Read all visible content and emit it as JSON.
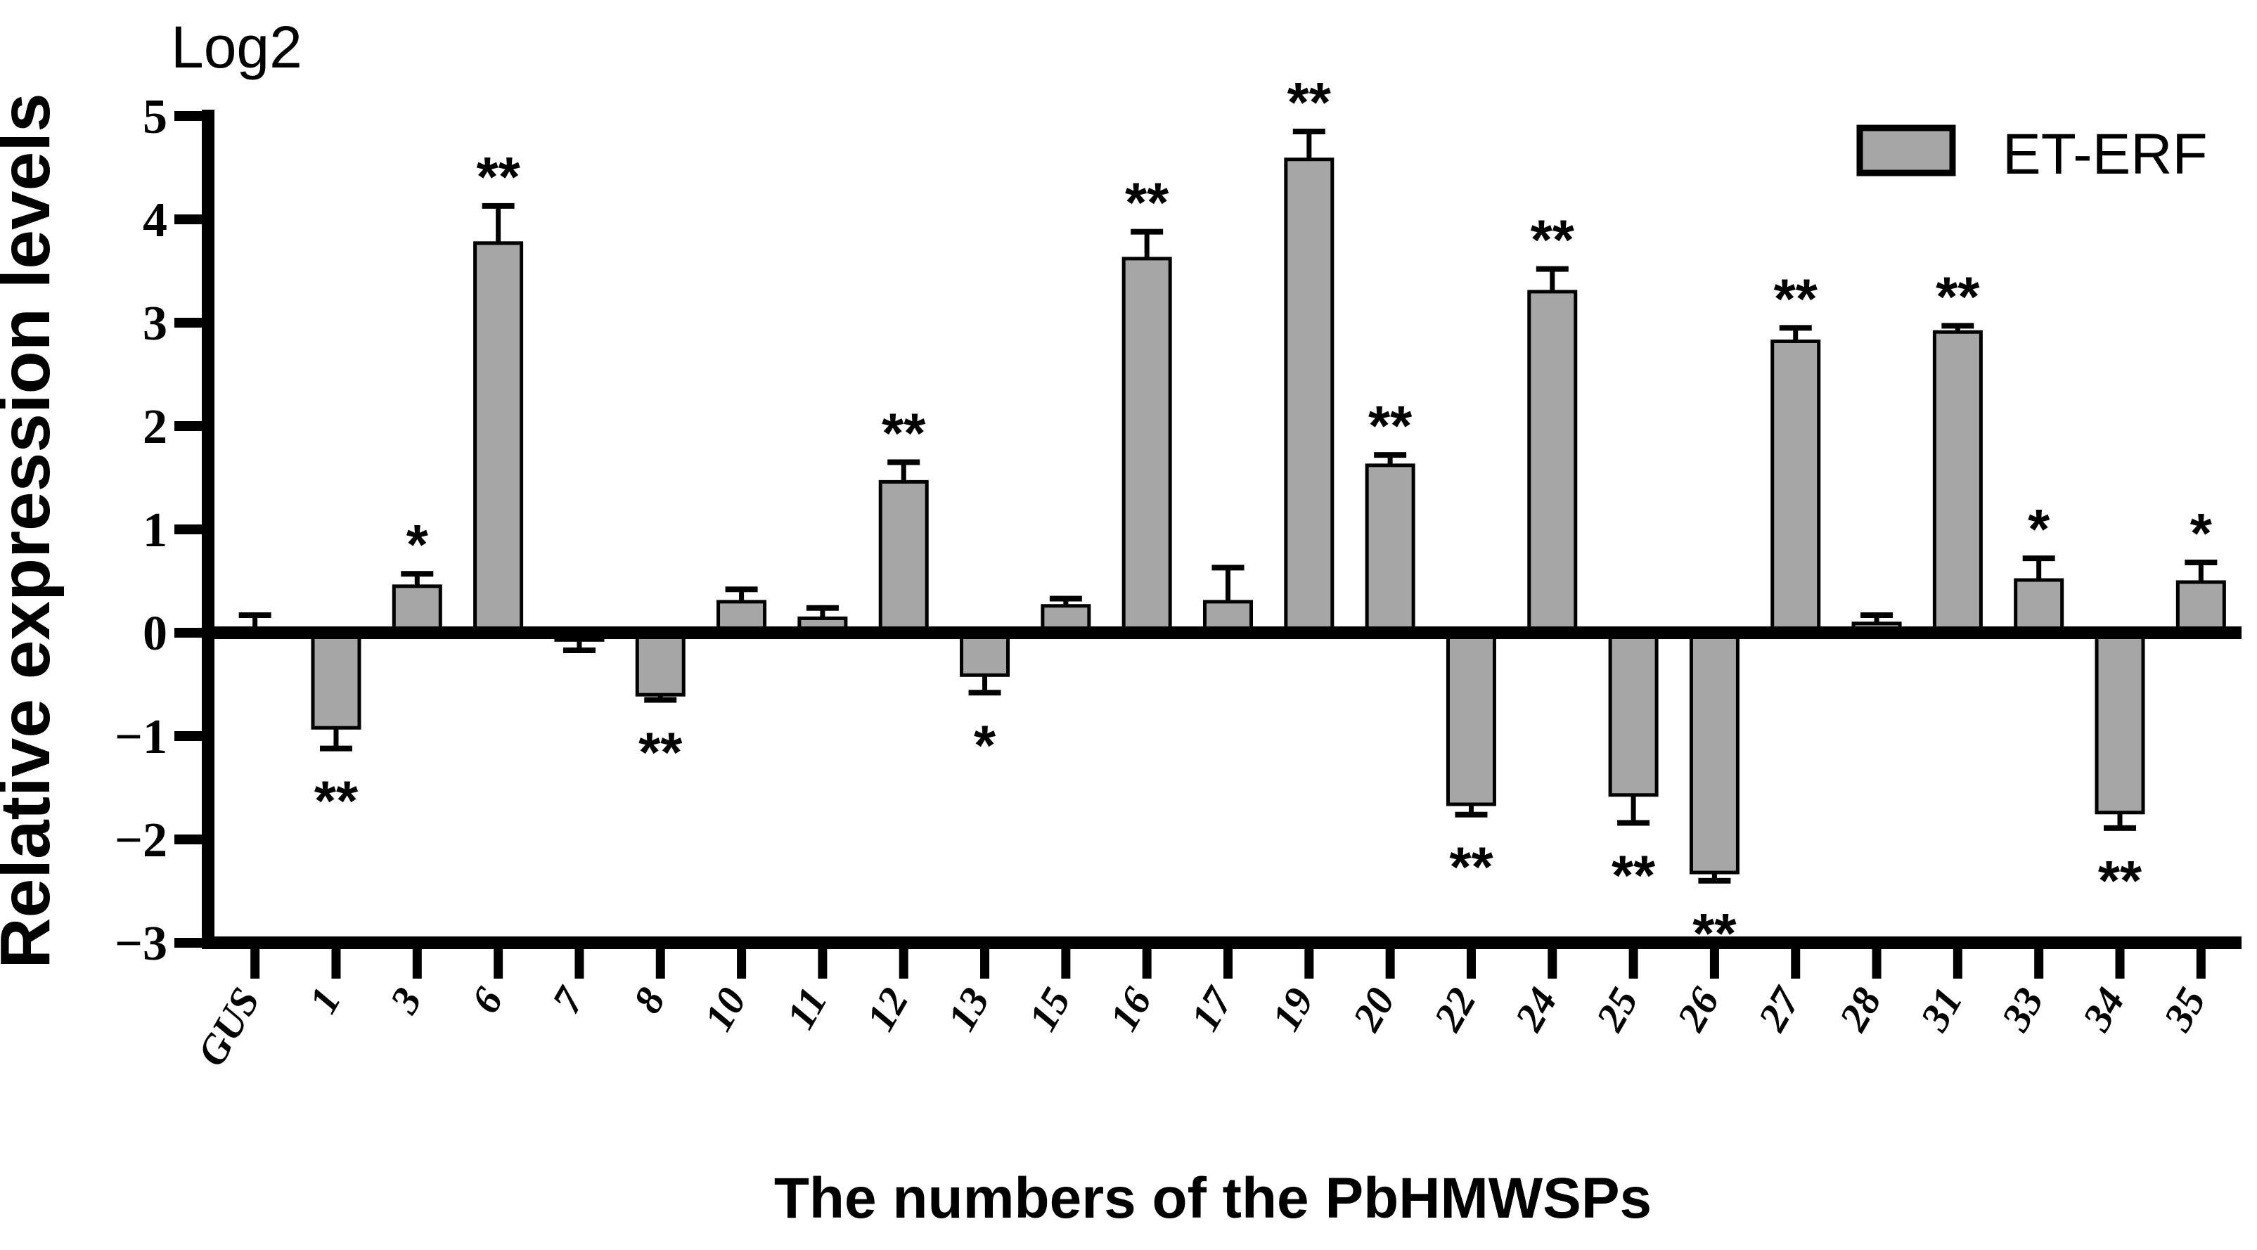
{
  "titles": {
    "log_label": "Log2",
    "y_axis": "Relative expression levels",
    "x_axis": "The numbers of the PbHMWSPs"
  },
  "legend": {
    "label": "ET-ERF",
    "swatch_color": "#a6a6a6"
  },
  "colors": {
    "bar_fill": "#a6a6a6",
    "bar_stroke": "#000000",
    "axis": "#000000",
    "background": "#ffffff",
    "text": "#000000"
  },
  "chart_data": {
    "type": "bar",
    "title": "Log2",
    "xlabel": "The numbers of the PbHMWSPs",
    "ylabel": "Relative expression levels",
    "ylim": [
      -3,
      5
    ],
    "yticks": [
      5,
      4,
      3,
      2,
      1,
      0,
      -1,
      -2,
      -3
    ],
    "grid": false,
    "legend_position": "top-right",
    "baseline": 0,
    "categories": [
      "GUS",
      "1",
      "3",
      "6",
      "7",
      "8",
      "10",
      "11",
      "12",
      "13",
      "15",
      "16",
      "17",
      "19",
      "20",
      "22",
      "24",
      "25",
      "26",
      "27",
      "28",
      "31",
      "33",
      "34",
      "35"
    ],
    "series": [
      {
        "name": "ET-ERF",
        "values": [
          0.02,
          -0.92,
          0.45,
          3.77,
          -0.07,
          -0.6,
          0.3,
          0.14,
          1.46,
          -0.41,
          0.26,
          3.62,
          0.3,
          4.58,
          1.62,
          -1.66,
          3.3,
          -1.57,
          -2.32,
          2.82,
          0.09,
          2.91,
          0.51,
          -1.74,
          0.49
        ],
        "errors": [
          0.15,
          0.2,
          0.12,
          0.36,
          0.1,
          0.05,
          0.12,
          0.1,
          0.19,
          0.17,
          0.07,
          0.26,
          0.33,
          0.27,
          0.1,
          0.1,
          0.22,
          0.27,
          0.08,
          0.13,
          0.08,
          0.06,
          0.21,
          0.15,
          0.19
        ],
        "significance": [
          "",
          "**",
          "*",
          "**",
          "",
          "**",
          "",
          "",
          "**",
          "*",
          "",
          "**",
          "",
          "**",
          "**",
          "**",
          "**",
          "**",
          "**",
          "**",
          "",
          "**",
          "*",
          "**",
          "*"
        ]
      }
    ]
  }
}
